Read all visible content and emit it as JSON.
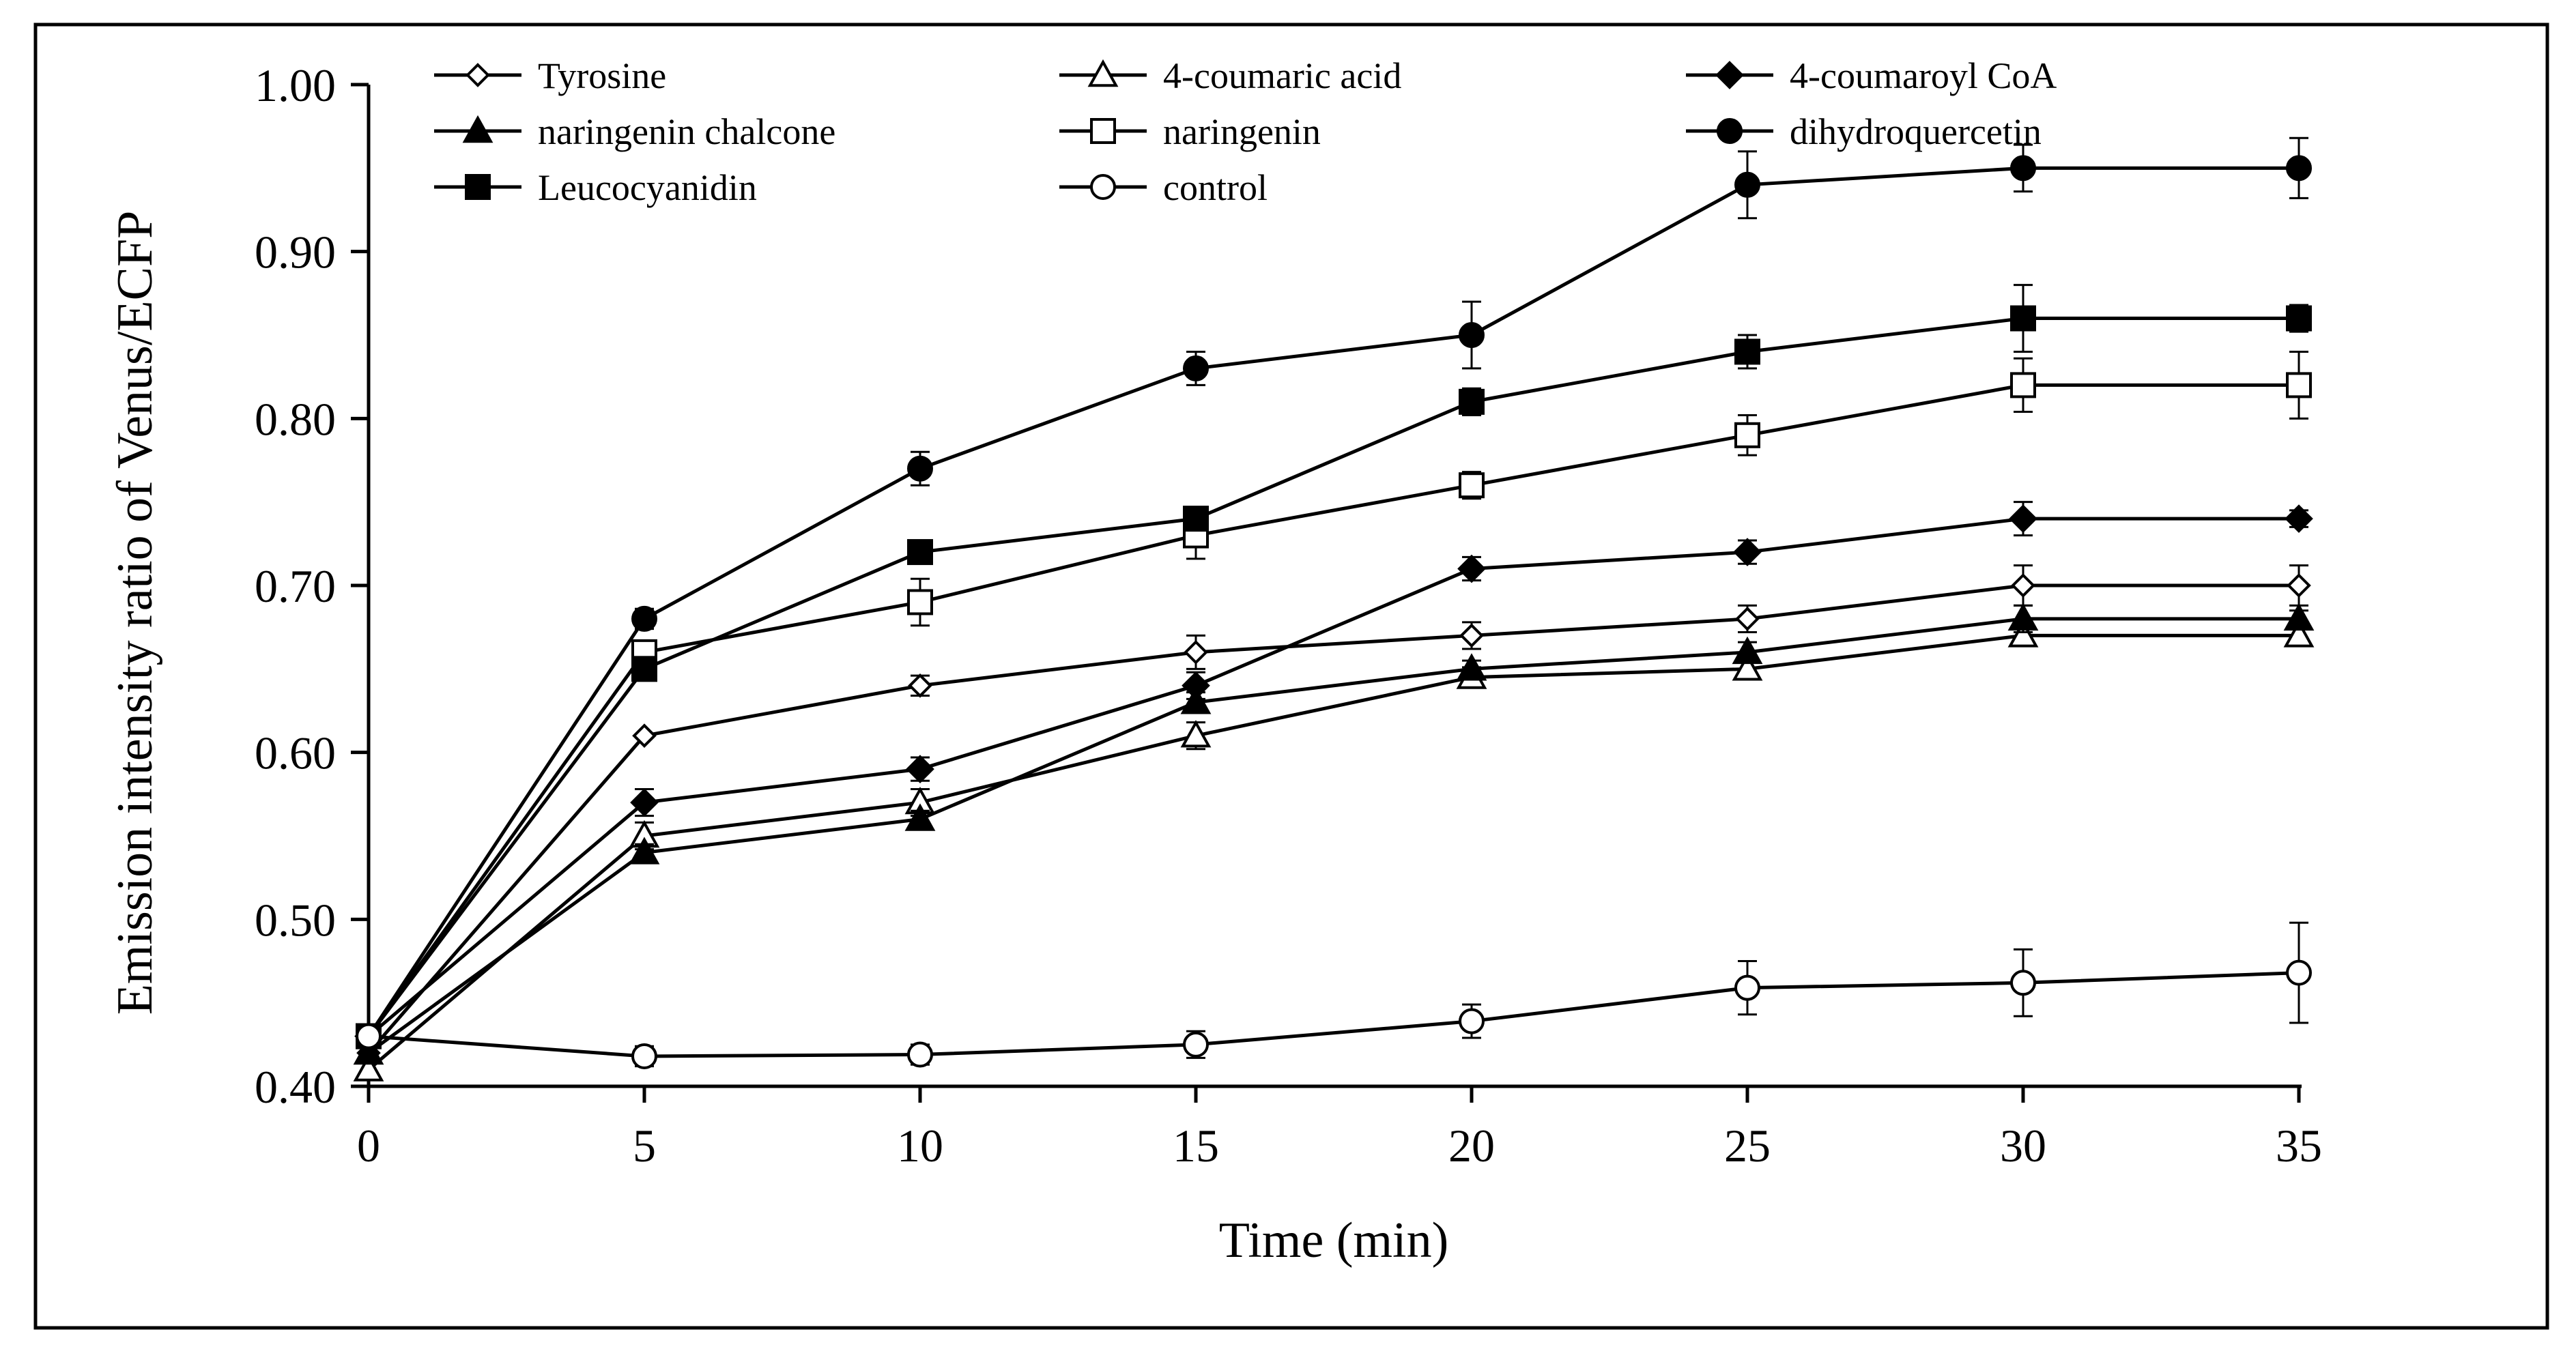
{
  "chart_data": {
    "type": "line",
    "title": "",
    "xlabel": "Time (min)",
    "ylabel": "Emission intensity ratio of Venus/ECFP",
    "x": [
      0,
      5,
      10,
      15,
      20,
      25,
      30,
      35
    ],
    "xlim": [
      0,
      35
    ],
    "ylim": [
      0.4,
      1.0
    ],
    "x_ticks": [
      "0",
      "5",
      "10",
      "15",
      "20",
      "25",
      "30",
      "35"
    ],
    "y_ticks": [
      "0.40",
      "0.50",
      "0.60",
      "0.70",
      "0.80",
      "0.90",
      "1.00"
    ],
    "grid": false,
    "legend_position": "top",
    "series": [
      {
        "name": "Tyrosine",
        "marker": "diamond-open",
        "values": [
          0.42,
          0.61,
          0.64,
          0.66,
          0.67,
          0.68,
          0.7,
          0.7
        ],
        "errors": [
          0.0,
          0.0,
          0.006,
          0.01,
          0.008,
          0.008,
          0.012,
          0.012
        ]
      },
      {
        "name": "4-coumaric acid",
        "marker": "triangle-open",
        "values": [
          0.41,
          0.55,
          0.57,
          0.61,
          0.645,
          0.65,
          0.67,
          0.67
        ],
        "errors": [
          0.0,
          0.008,
          0.008,
          0.008,
          0.006,
          0.006,
          0.006,
          0.005
        ]
      },
      {
        "name": "4-coumaroyl CoA",
        "marker": "diamond-filled",
        "values": [
          0.43,
          0.57,
          0.59,
          0.64,
          0.71,
          0.72,
          0.74,
          0.74
        ],
        "errors": [
          0.0,
          0.008,
          0.007,
          0.008,
          0.007,
          0.007,
          0.01,
          0.005
        ]
      },
      {
        "name": "naringenin chalcone",
        "marker": "triangle-filled",
        "values": [
          0.42,
          0.54,
          0.56,
          0.63,
          0.65,
          0.66,
          0.68,
          0.68
        ],
        "errors": [
          0.0,
          0.005,
          0.005,
          0.006,
          0.005,
          0.006,
          0.008,
          0.005
        ]
      },
      {
        "name": "naringenin",
        "marker": "square-open",
        "values": [
          0.43,
          0.66,
          0.69,
          0.73,
          0.76,
          0.79,
          0.82,
          0.82
        ],
        "errors": [
          0.0,
          0.006,
          0.014,
          0.014,
          0.008,
          0.012,
          0.016,
          0.02
        ]
      },
      {
        "name": "dihydroquercetin",
        "marker": "circle-filled",
        "values": [
          0.43,
          0.68,
          0.77,
          0.83,
          0.85,
          0.94,
          0.95,
          0.95
        ],
        "errors": [
          0.0,
          0.006,
          0.01,
          0.01,
          0.02,
          0.02,
          0.014,
          0.018
        ]
      },
      {
        "name": "Leucocyanidin",
        "marker": "square-filled",
        "values": [
          0.43,
          0.65,
          0.72,
          0.74,
          0.81,
          0.84,
          0.86,
          0.86
        ],
        "errors": [
          0.0,
          0.005,
          0.006,
          0.006,
          0.008,
          0.01,
          0.02,
          0.008
        ]
      },
      {
        "name": "control",
        "marker": "circle-open",
        "values": [
          0.43,
          0.418,
          0.419,
          0.425,
          0.439,
          0.459,
          0.462,
          0.468
        ],
        "errors": [
          0.0,
          0.006,
          0.006,
          0.008,
          0.01,
          0.016,
          0.02,
          0.03
        ]
      }
    ]
  }
}
